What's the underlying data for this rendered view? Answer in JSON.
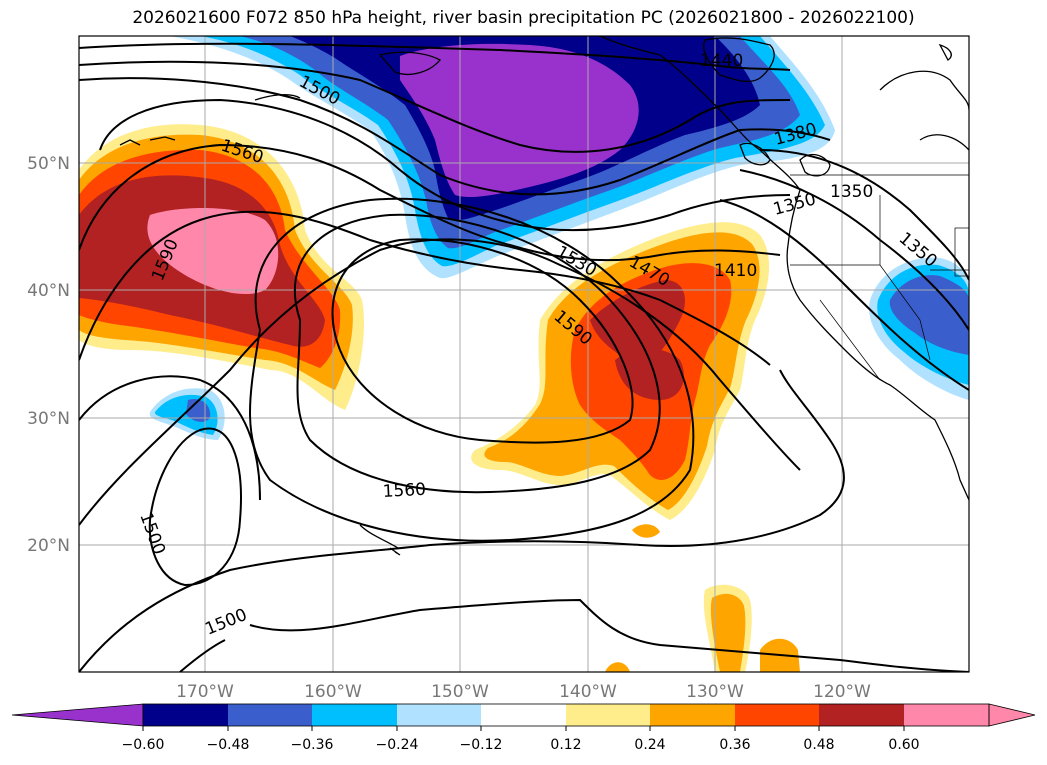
{
  "title": "2026021600 F072 850 hPa height, river basin precipitation PC (2026021800 - 2026022100)",
  "latitude_labels": [
    "50°N",
    "40°N",
    "30°N",
    "20°N"
  ],
  "longitude_labels": [
    "170°W",
    "160°W",
    "150°W",
    "140°W",
    "130°W",
    "120°W"
  ],
  "colorbar": {
    "tick_labels": [
      "−0.60",
      "−0.48",
      "−0.36",
      "−0.24",
      "−0.12",
      "0.12",
      "0.24",
      "0.36",
      "0.48",
      "0.60"
    ],
    "colors": [
      "#9932cc",
      "#00008b",
      "#3a5fcd",
      "#00bfff",
      "#b0e2ff",
      "#ffffff",
      "#ffec8b",
      "#ffa500",
      "#ff4500",
      "#b22222",
      "#ff88aa"
    ]
  },
  "contour_labels": [
    "1440",
    "1380",
    "1350",
    "1350",
    "1350",
    "1410",
    "1470",
    "1530",
    "1590",
    "1560",
    "1560",
    "1590",
    "1500",
    "1500",
    "1500"
  ]
}
